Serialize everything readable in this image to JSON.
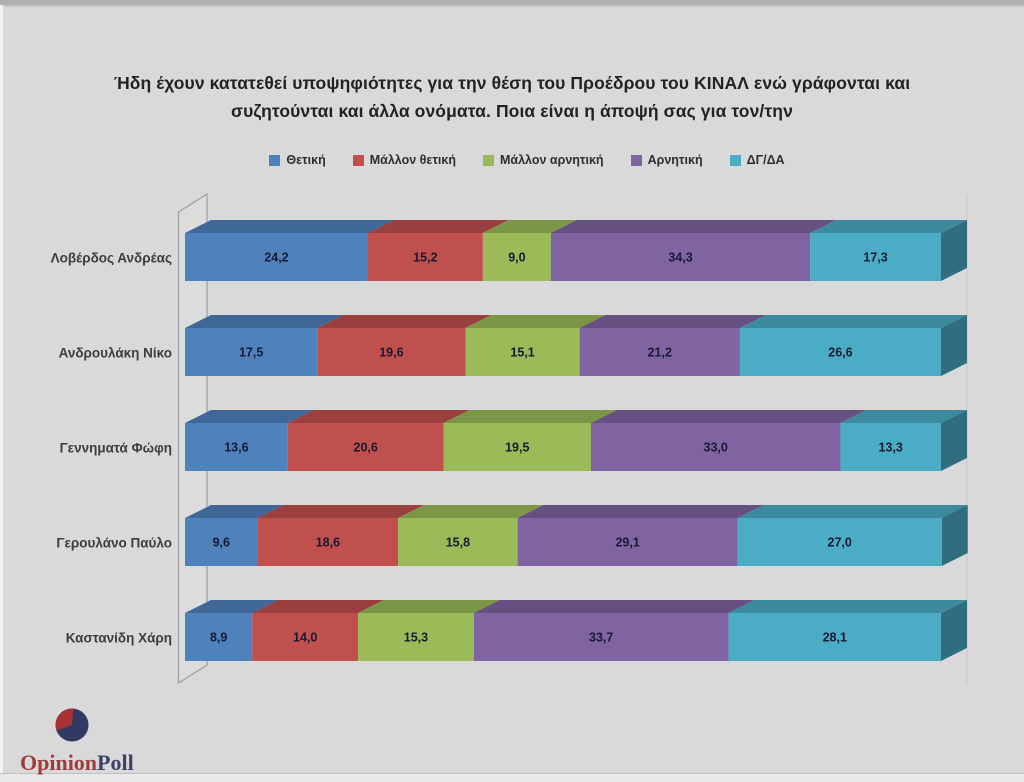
{
  "page": {
    "background": "#d9d9d9"
  },
  "title": {
    "text": "Ήδη έχουν κατατεθεί υποψηφιότητες για την θέση του Προέδρου του ΚΙΝΑΛ ενώ γράφονται και συζητούνται και άλλα ονόματα. Ποια είναι η άποψή σας για τον/την"
  },
  "chart_data": {
    "type": "bar",
    "stacked": true,
    "orientation": "horizontal",
    "style": "3d",
    "xlim": [
      0,
      100
    ],
    "legend_position": "top",
    "decimal_separator": ",",
    "categories": [
      "Λοβέρδος Ανδρέας",
      "Ανδρουλάκη Νίκο",
      "Γεννηματά Φώφη",
      "Γερουλάνο Παύλο",
      "Καστανίδη Χάρη"
    ],
    "series": [
      {
        "name": "Θετική",
        "color": "#4f81bd",
        "values": [
          24.2,
          17.5,
          13.6,
          9.6,
          8.9
        ]
      },
      {
        "name": "Μάλλον θετική",
        "color": "#c0504d",
        "values": [
          15.2,
          19.6,
          20.6,
          18.6,
          14.0
        ]
      },
      {
        "name": "Μάλλον αρνητική",
        "color": "#9bbb59",
        "values": [
          9.0,
          15.1,
          19.5,
          15.8,
          15.3
        ]
      },
      {
        "name": "Αρνητική",
        "color": "#8064a2",
        "values": [
          34.3,
          21.2,
          33.0,
          29.1,
          33.7
        ]
      },
      {
        "name": "ΔΓ/ΔΑ",
        "color": "#4bacc6",
        "values": [
          17.3,
          26.6,
          13.3,
          27.0,
          28.1
        ]
      }
    ]
  },
  "logo": {
    "text_primary": "Opinion",
    "text_secondary": "Poll",
    "primary_color": "#a03c3c",
    "secondary_color": "#3a4367",
    "ball_color": "#303a63",
    "wedge_color": "#a63236"
  }
}
